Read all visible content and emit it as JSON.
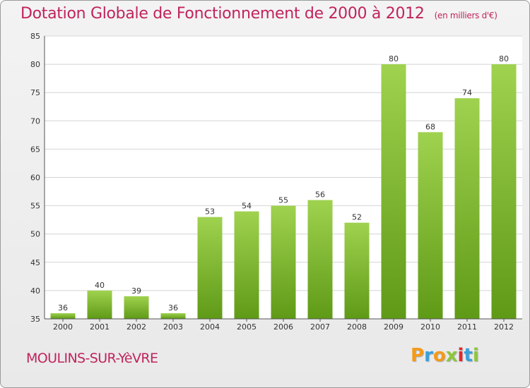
{
  "header": {
    "title": "Dotation Globale de Fonctionnement de 2000 à 2012",
    "subtitle": "(en milliers d'€)"
  },
  "footer": {
    "commune": "MOULINS-SUR-YèVRE",
    "logo": "Proxiti",
    "logo_colors": [
      "#f39a1b",
      "#3aa0dc",
      "#f39a1b",
      "#8dc63f",
      "#e0282e",
      "#3aa0dc",
      "#8dc63f"
    ]
  },
  "chart_data": {
    "type": "bar",
    "title": "Dotation Globale de Fonctionnement de 2000 à 2012",
    "subtitle": "(en milliers d'€)",
    "categories": [
      "2000",
      "2001",
      "2002",
      "2003",
      "2004",
      "2005",
      "2006",
      "2007",
      "2008",
      "2009",
      "2010",
      "2011",
      "2012"
    ],
    "values": [
      36,
      40,
      39,
      36,
      53,
      54,
      55,
      56,
      52,
      80,
      68,
      74,
      80
    ],
    "ylim": [
      35,
      85
    ],
    "yticks": [
      35,
      40,
      45,
      50,
      55,
      60,
      65,
      70,
      75,
      80,
      85
    ],
    "grid": true,
    "bar_color_top": "#9fd24f",
    "bar_color_bottom": "#5f9a16"
  }
}
